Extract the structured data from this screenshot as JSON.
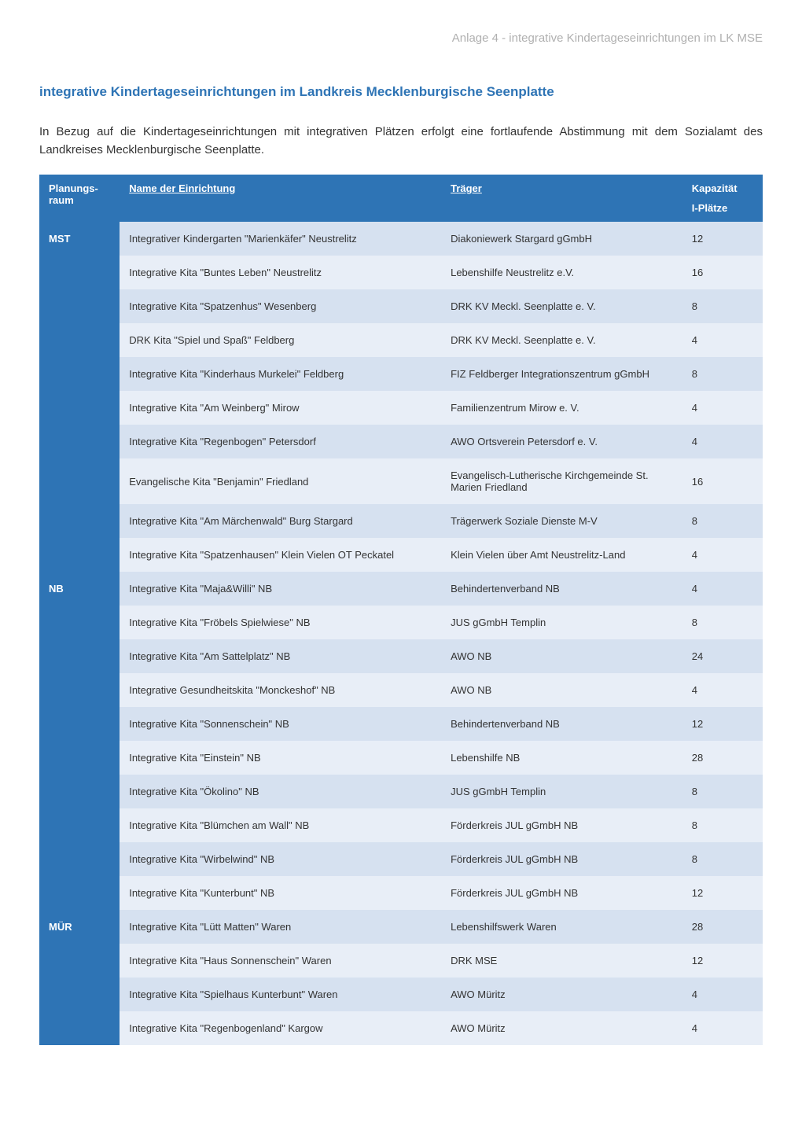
{
  "header": "Anlage 4 - integrative Kindertageseinrichtungen im LK MSE",
  "title": "integrative Kindertageseinrichtungen im Landkreis Mecklenburgische Seenplatte",
  "intro": "In Bezug auf die Kindertageseinrichtungen mit integrativen Plätzen erfolgt eine fortlaufende Abstimmung mit dem Sozialamt des Landkreises Mecklenburgische Seenplatte.",
  "columns": {
    "region": "Planungs-raum",
    "name": "Name der Einrichtung",
    "traeger": "Träger",
    "kapazitaet": "Kapazität",
    "iplaetze": "I-Plätze"
  },
  "regions": [
    {
      "label": "MST",
      "rows": [
        {
          "name": "Integrativer Kindergarten \"Marienkäfer\" Neustrelitz",
          "traeger": "Diakoniewerk Stargard gGmbH",
          "kap": "12",
          "shade": "dark"
        },
        {
          "name": "Integrative Kita \"Buntes Leben\" Neustrelitz",
          "traeger": "Lebenshilfe Neustrelitz e.V.",
          "kap": "16",
          "shade": "light"
        },
        {
          "name": "Integrative Kita \"Spatzenhus\" Wesenberg",
          "traeger": "DRK KV Meckl. Seenplatte e. V.",
          "kap": "8",
          "shade": "dark"
        },
        {
          "name": "DRK Kita \"Spiel und Spaß\" Feldberg",
          "traeger": "DRK KV Meckl. Seenplatte e. V.",
          "kap": "4",
          "shade": "light"
        },
        {
          "name": "Integrative Kita \"Kinderhaus Murkelei\" Feldberg",
          "traeger": "FIZ Feldberger Integrationszentrum gGmbH",
          "kap": "8",
          "shade": "dark"
        },
        {
          "name": "Integrative Kita \"Am Weinberg\" Mirow",
          "traeger": "Familienzentrum Mirow e. V.",
          "kap": "4",
          "shade": "light"
        },
        {
          "name": "Integrative Kita \"Regenbogen\" Petersdorf",
          "traeger": "AWO Ortsverein Petersdorf e. V.",
          "kap": "4",
          "shade": "dark"
        },
        {
          "name": "Evangelische Kita \"Benjamin\" Friedland",
          "traeger": "Evangelisch-Lutherische Kirchgemeinde St. Marien Friedland",
          "kap": "16",
          "shade": "light"
        },
        {
          "name": "Integrative Kita \"Am Märchenwald\" Burg Stargard",
          "traeger": "Trägerwerk Soziale Dienste M-V",
          "kap": "8",
          "shade": "dark"
        },
        {
          "name": "Integrative Kita \"Spatzenhausen\" Klein Vielen OT Peckatel",
          "traeger": "Klein Vielen über Amt Neustrelitz-Land",
          "kap": "4",
          "shade": "light"
        }
      ]
    },
    {
      "label": "NB",
      "rows": [
        {
          "name": "Integrative Kita \"Maja&Willi\" NB",
          "traeger": "Behindertenverband NB",
          "kap": "4",
          "shade": "dark"
        },
        {
          "name": "Integrative Kita \"Fröbels Spielwiese\" NB",
          "traeger": "JUS gGmbH Templin",
          "kap": "8",
          "shade": "light"
        },
        {
          "name": "Integrative Kita \"Am Sattelplatz\" NB",
          "traeger": "AWO NB",
          "kap": "24",
          "shade": "dark"
        },
        {
          "name": "Integrative Gesundheitskita \"Monckeshof\" NB",
          "traeger": "AWO NB",
          "kap": "4",
          "shade": "light"
        },
        {
          "name": "Integrative Kita \"Sonnenschein\" NB",
          "traeger": "Behindertenverband NB",
          "kap": "12",
          "shade": "dark"
        },
        {
          "name": "Integrative Kita \"Einstein\" NB",
          "traeger": "Lebenshilfe NB",
          "kap": "28",
          "shade": "light"
        },
        {
          "name": "Integrative Kita \"Ökolino\" NB",
          "traeger": "JUS gGmbH Templin",
          "kap": "8",
          "shade": "dark"
        },
        {
          "name": "Integrative Kita \"Blümchen am Wall\" NB",
          "traeger": "Förderkreis JUL gGmbH NB",
          "kap": "8",
          "shade": "light"
        },
        {
          "name": "Integrative Kita \"Wirbelwind\" NB",
          "traeger": "Förderkreis JUL gGmbH NB",
          "kap": "8",
          "shade": "dark"
        },
        {
          "name": "Integrative Kita \"Kunterbunt\" NB",
          "traeger": "Förderkreis JUL gGmbH NB",
          "kap": "12",
          "shade": "light"
        }
      ]
    },
    {
      "label": "MÜR",
      "rows": [
        {
          "name": "Integrative Kita \"Lütt Matten\" Waren",
          "traeger": "Lebenshilfswerk Waren",
          "kap": "28",
          "shade": "dark"
        },
        {
          "name": "Integrative Kita \"Haus Sonnenschein\" Waren",
          "traeger": "DRK MSE",
          "kap": "12",
          "shade": "light"
        },
        {
          "name": "Integrative Kita \"Spielhaus Kunterbunt\" Waren",
          "traeger": "AWO Müritz",
          "kap": "4",
          "shade": "dark"
        },
        {
          "name": "Integrative Kita \"Regenbogenland\" Kargow",
          "traeger": "AWO Müritz",
          "kap": "4",
          "shade": "light"
        }
      ]
    }
  ],
  "colors": {
    "header_bg": "#2e74b5",
    "row_light": "#e8eef7",
    "row_dark": "#d6e1f0",
    "title_color": "#2e74b5",
    "gray_text": "#b0b0b0"
  }
}
